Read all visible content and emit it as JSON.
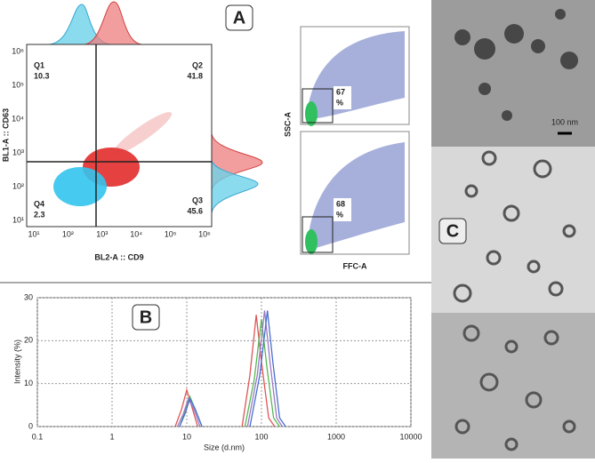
{
  "panel_a": {
    "label": "A",
    "quadrants": [
      {
        "name": "Q1",
        "value": "10.3"
      },
      {
        "name": "Q2",
        "value": "41.8"
      },
      {
        "name": "Q3",
        "value": "45.6"
      },
      {
        "name": "Q4",
        "value": "2.3"
      }
    ],
    "x_axis_label": "BL2-A :: CD9",
    "y_axis_label": "BL1-A :: CD63",
    "x_tick_labels": [
      "10¹",
      "10²",
      "10³",
      "10⁴",
      "10⁵",
      "10⁶"
    ],
    "y_tick_labels": [
      "10⁶",
      "10⁵",
      "10⁴",
      "10³",
      "10²",
      "10¹"
    ],
    "gates": [
      {
        "value": "67",
        "unit": "%"
      },
      {
        "value": "68",
        "unit": "%"
      }
    ],
    "ssc_label": "SSC-A",
    "ffc_label": "FFC-A"
  },
  "chart_data": {
    "type": "line",
    "panel_label": "B",
    "x_label": "Size (d.nm)",
    "y_label": "Intensity (%)",
    "log_x": true,
    "grid": true,
    "xlim": [
      0.1,
      10000
    ],
    "xticks": [
      0.1,
      1,
      10,
      100,
      1000,
      10000
    ],
    "ylim": [
      0,
      30
    ],
    "yticks": [
      0,
      10,
      20,
      30
    ],
    "series": [
      {
        "color": "#e05555",
        "x": [
          7,
          8.5,
          10,
          11.5,
          14,
          30,
          55,
          70,
          85,
          100,
          125,
          150
        ],
        "values": [
          0,
          4,
          8.5,
          5,
          0,
          null,
          0,
          12,
          26,
          15,
          2,
          0
        ]
      },
      {
        "color": "#55b855",
        "x": [
          8,
          9.5,
          11,
          13,
          16,
          30,
          60,
          80,
          100,
          118,
          145,
          175
        ],
        "values": [
          0,
          3.5,
          7,
          4,
          0,
          null,
          0,
          11,
          25,
          14,
          2,
          0
        ]
      },
      {
        "color": "#9a7ac4",
        "x": [
          7.5,
          9,
          10.5,
          12.5,
          15,
          30,
          65,
          88,
          110,
          130,
          160,
          190
        ],
        "values": [
          0,
          3,
          6.5,
          4,
          0,
          null,
          0,
          12,
          27,
          15,
          2,
          0
        ]
      },
      {
        "color": "#4a6fd0",
        "x": [
          8,
          9.5,
          11,
          13,
          16,
          30,
          70,
          95,
          120,
          142,
          175,
          210
        ],
        "values": [
          0,
          3,
          6.5,
          4,
          0,
          null,
          0,
          12,
          27,
          15,
          2,
          0
        ]
      }
    ]
  },
  "panel_c": {
    "label": "C",
    "scale_bar": "100 nm"
  }
}
